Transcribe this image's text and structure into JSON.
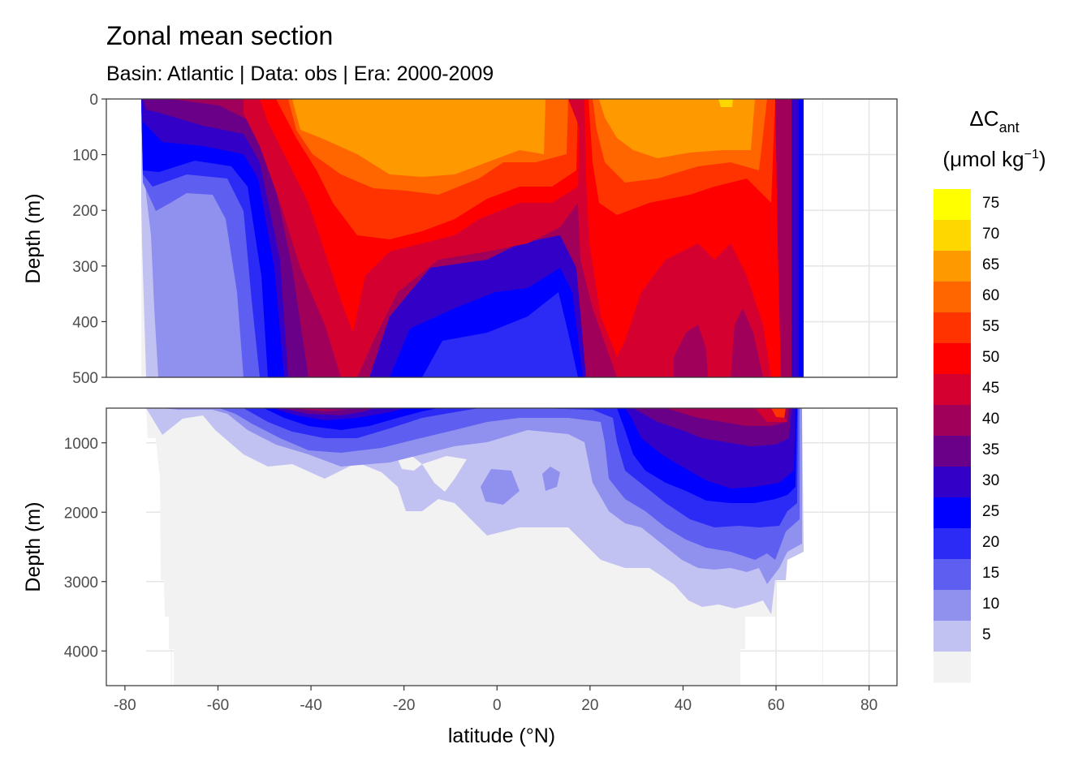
{
  "chart_data": {
    "type": "heatmap",
    "title": "Zonal mean section",
    "subtitle": "Basin: Atlantic | Data: obs | Era: 2000-2009",
    "xlabel": "latitude (°N)",
    "ylabel": "Depth (m)",
    "xlim": [
      -84,
      86
    ],
    "x_ticks": [
      "-80",
      "-60",
      "-40",
      "-20",
      "0",
      "20",
      "40",
      "60",
      "80"
    ],
    "x_tick_values": [
      -80,
      -60,
      -40,
      -20,
      0,
      20,
      40,
      60,
      80
    ],
    "grid": true,
    "legend_position": "right",
    "legend": {
      "title_main": "ΔC",
      "title_sub": "ant",
      "unit_prefix": "(μmol kg",
      "unit_sup": "−1",
      "unit_suffix": ")",
      "labels": [
        "75",
        "70",
        "65",
        "60",
        "55",
        "50",
        "45",
        "40",
        "35",
        "30",
        "25",
        "20",
        "15",
        "10",
        "5"
      ],
      "colors": [
        "#FFFF00",
        "#FFD700",
        "#FF9900",
        "#FF6600",
        "#FF3300",
        "#FF0000",
        "#D40030",
        "#A0005A",
        "#6A0088",
        "#3300C8",
        "#0000FF",
        "#2B2BF5",
        "#5E5EF0",
        "#9090EE",
        "#C2C2F2",
        "#F2F2F2"
      ]
    },
    "panels": [
      {
        "name": "upper",
        "ylim": [
          500,
          0
        ],
        "y_ticks": [
          "0",
          "100",
          "200",
          "300",
          "400",
          "500"
        ],
        "y_tick_values": [
          0,
          100,
          200,
          300,
          400,
          500
        ]
      },
      {
        "name": "lower",
        "ylim": [
          4500,
          500
        ],
        "y_ticks": [
          "1000",
          "2000",
          "3000",
          "4000"
        ],
        "y_tick_values": [
          1000,
          2000,
          3000,
          4000
        ]
      }
    ],
    "field_summary": {
      "upper": {
        "lat_boundaries": [
          -78,
          64
        ],
        "surface_max_lat_bands": [
          [
            -45,
            10
          ],
          [
            22,
            55
          ]
        ],
        "surface_max_value": 70,
        "min_value": 5
      },
      "lower": {
        "deep_values_south_of_20N": 5,
        "max_north_atlantic_lat": 45,
        "max_north_atlantic_depth": 1800
      }
    }
  }
}
